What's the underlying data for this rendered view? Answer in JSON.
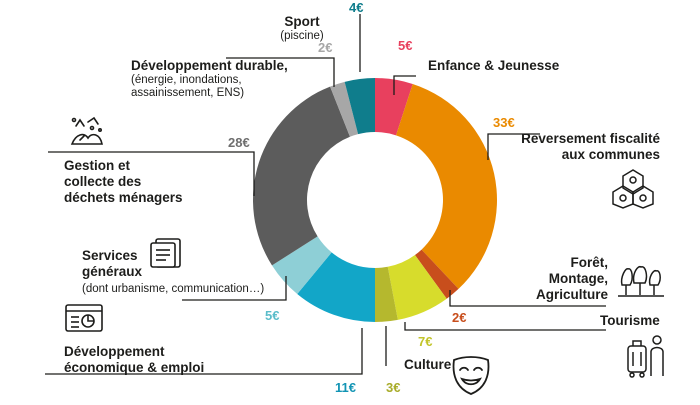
{
  "chart_data": {
    "type": "pie",
    "unit": "€",
    "slices": [
      {
        "key": "enfance",
        "label": "Enfance & Jeunesse",
        "sublabel": "",
        "value": 5,
        "value_label": "5€",
        "color": "#e8405e",
        "label_color": "#e8405e"
      },
      {
        "key": "reversement",
        "label": "Reversement fiscalité aux communes",
        "sublabel": "",
        "value": 33,
        "value_label": "33€",
        "color": "#ea8a00",
        "label_color": "#ea8a00"
      },
      {
        "key": "foret",
        "label": "Forêt, Montage, Agriculture",
        "sublabel": "",
        "value": 2,
        "value_label": "2€",
        "color": "#c84e1c",
        "label_color": "#c84e1c"
      },
      {
        "key": "tourisme",
        "label": "Tourisme",
        "sublabel": "",
        "value": 7,
        "value_label": "7€",
        "color": "#d7dc2c",
        "label_color": "#c2c42a"
      },
      {
        "key": "culture",
        "label": "Culture",
        "sublabel": "",
        "value": 3,
        "value_label": "3€",
        "color": "#b5b82e",
        "label_color": "#a8ac2a"
      },
      {
        "key": "economie",
        "label": "Développement économique & emploi",
        "sublabel": "",
        "value": 11,
        "value_label": "11€",
        "color": "#12a6c8",
        "label_color": "#1294b4"
      },
      {
        "key": "services",
        "label": "Services généraux",
        "sublabel": "(dont urbanisme, communication…)",
        "value": 5,
        "value_label": "5€",
        "color": "#8ecfd6",
        "label_color": "#5bbdca"
      },
      {
        "key": "dechets",
        "label": "Gestion et collecte des déchets ménagers",
        "sublabel": "",
        "value": 28,
        "value_label": "28€",
        "color": "#5c5c5c",
        "label_color": "#6e6e6e"
      },
      {
        "key": "durable",
        "label": "Développement durable,",
        "sublabel": "(énergie, inondations, assainissement, ENS)",
        "value": 2,
        "value_label": "2€",
        "color": "#a7a7a7",
        "label_color": "#a7a7a7"
      },
      {
        "key": "sport",
        "label": "Sport",
        "sublabel": "(piscine)",
        "value": 4,
        "value_label": "4€",
        "color": "#0f7d8c",
        "label_color": "#0f7d8c"
      }
    ]
  }
}
